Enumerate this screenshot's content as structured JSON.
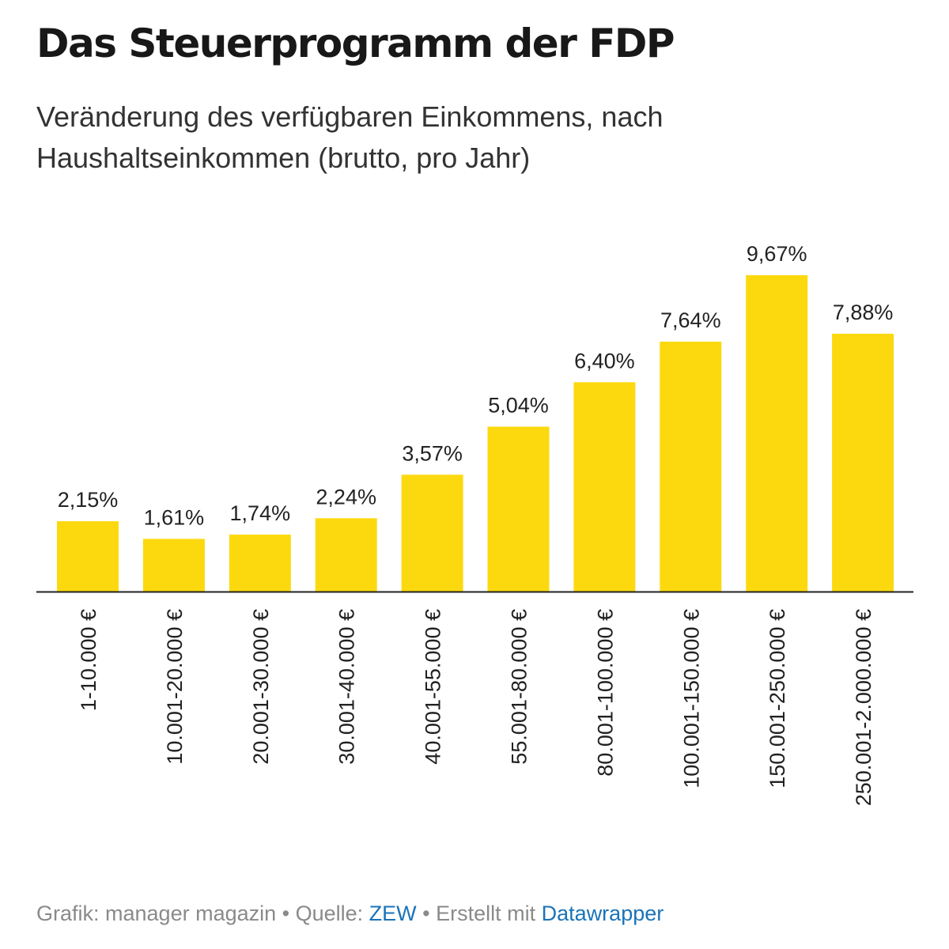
{
  "title": "Das Steuerprogramm der FDP",
  "subtitle": "Veränderung des verfügbaren Einkommens, nach Haushaltseinkommen (brutto, pro Jahr)",
  "footer": {
    "grafik": "Grafik: manager magazin",
    "separator": " • ",
    "quelle_label": "Quelle: ",
    "quelle_link": "ZEW",
    "erstellt_label": "Erstellt mit ",
    "erstellt_link": "Datawrapper"
  },
  "colors": {
    "bar": "#FCD90F",
    "baseline": "#222222",
    "link": "#1a73b8"
  },
  "chart_data": {
    "type": "bar",
    "categories": [
      "1-10.000 €",
      "10.001-20.000 €",
      "20.001-30.000 €",
      "30.001-40.000 €",
      "40.001-55.000 €",
      "55.001-80.000 €",
      "80.001-100.000 €",
      "100.001-150.000 €",
      "150.001-250.000 €",
      "250.001-2.000.000 €"
    ],
    "values": [
      2.15,
      1.61,
      1.74,
      2.24,
      3.57,
      5.04,
      6.4,
      7.64,
      9.67,
      7.88
    ],
    "value_labels": [
      "2,15%",
      "1,61%",
      "1,74%",
      "2,24%",
      "3,57%",
      "5,04%",
      "6,40%",
      "7,64%",
      "9,67%",
      "7,88%"
    ],
    "xlabel": "",
    "ylabel": "",
    "ylim": [
      0,
      9.67
    ],
    "grid": false
  }
}
